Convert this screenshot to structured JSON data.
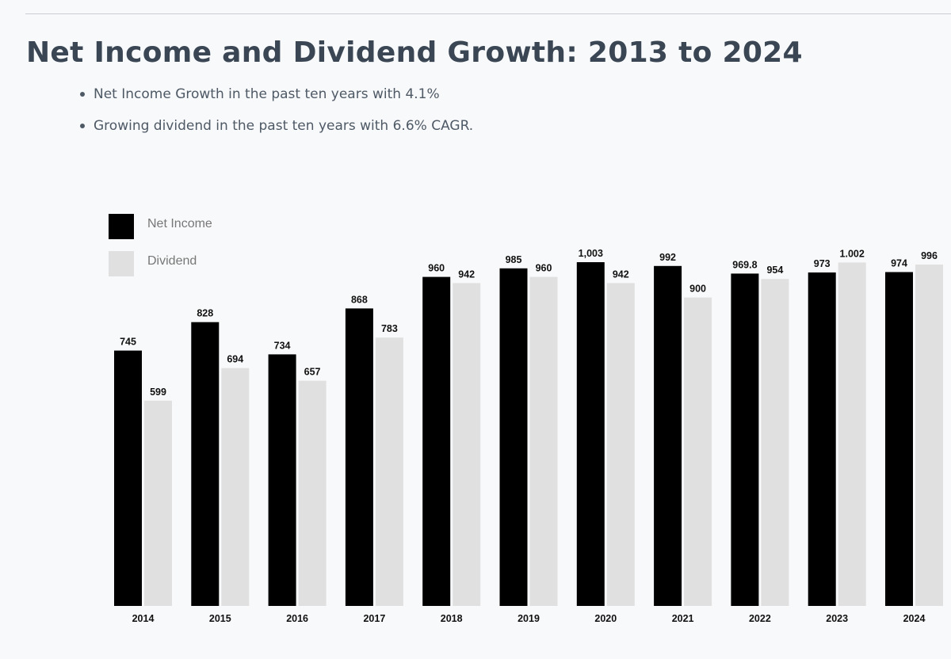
{
  "page": {
    "title": "Net Income and Dividend Growth: 2013 to 2024",
    "bullets": [
      "Net Income Growth in the past ten years with 4.1%",
      "Growing dividend in the past ten years with 6.6% CAGR."
    ]
  },
  "chart_data": {
    "type": "bar",
    "title": "",
    "xlabel": "",
    "ylabel": "",
    "ylim": [
      0,
      1003
    ],
    "grid": false,
    "legend_position": "top-left",
    "categories": [
      "2014",
      "2015",
      "2016",
      "2017",
      "2018",
      "2019",
      "2020",
      "2021",
      "2022",
      "2023",
      "2024"
    ],
    "series": [
      {
        "name": "Net Income",
        "color": "#000000",
        "values": [
          745,
          828,
          734,
          868,
          960,
          985,
          1003,
          992,
          969.8,
          973,
          974
        ],
        "labels": [
          "745",
          "828",
          "734",
          "868",
          "960",
          "985",
          "1,003",
          "992",
          "969.8",
          "973",
          "974"
        ]
      },
      {
        "name": "Dividend",
        "color": "#e0e0e0",
        "values": [
          599,
          694,
          657,
          783,
          942,
          960,
          942,
          900,
          954,
          1002,
          996
        ],
        "labels": [
          "599",
          "694",
          "657",
          "783",
          "942",
          "960",
          "942",
          "900",
          "954",
          "1.002",
          "996"
        ]
      }
    ]
  }
}
